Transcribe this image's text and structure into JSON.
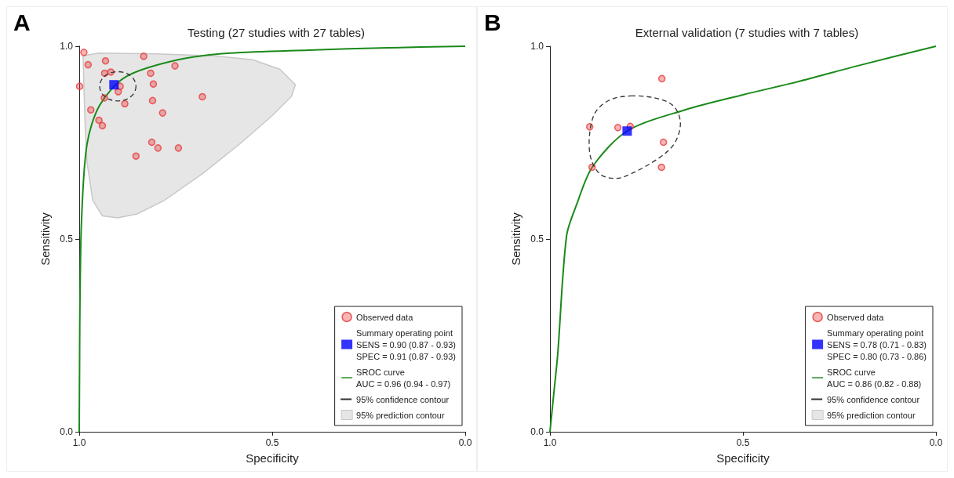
{
  "chart_data": [
    {
      "type": "scatter",
      "title": "Testing (27 studies with 27 tables)",
      "xlabel": "Specificity",
      "ylabel": "Sensitivity",
      "annotations": [
        "A",
        "95% confidence contour"
      ],
      "xlim": [
        1,
        0
      ],
      "ylim": [
        0,
        1
      ],
      "xticks": [
        {
          "value": 1,
          "label": "1.0"
        },
        {
          "value": 0.5,
          "label": "0.5"
        },
        {
          "value": 0,
          "label": "0.0"
        }
      ],
      "yticks": [
        {
          "value": 0,
          "label": "0.0"
        },
        {
          "value": 0.5,
          "label": "0.5"
        },
        {
          "value": 1,
          "label": "1.0"
        }
      ],
      "grid": false,
      "legend": "bottom right",
      "series": [
        {
          "name": "Observed data",
          "type": "scatter",
          "marker": "circle",
          "color": "#e8393a",
          "x": [
            0.988,
            0.833,
            0.977,
            0.932,
            0.752,
            0.934,
            0.918,
            0.815,
            0.999,
            0.894,
            0.808,
            0.899,
            0.935,
            0.81,
            0.681,
            0.882,
            0.97,
            0.784,
            0.949,
            0.94,
            0.812,
            0.796,
            0.743,
            0.853
          ],
          "values": [
            0.984,
            0.974,
            0.952,
            0.962,
            0.949,
            0.93,
            0.933,
            0.93,
            0.896,
            0.896,
            0.902,
            0.882,
            0.866,
            0.859,
            0.869,
            0.851,
            0.835,
            0.827,
            0.808,
            0.794,
            0.751,
            0.736,
            0.736,
            0.715
          ]
        },
        {
          "name": "Summary operating point\nSENS = 0.90 (0.87 - 0.93)\nSPEC = 0.91 (0.87 - 0.93)",
          "type": "scatter",
          "marker": "square",
          "color": "#0000ff",
          "x": [
            0.91
          ],
          "values": [
            0.9
          ]
        },
        {
          "name": "SROC curve\nAUC = 0.96 (0.94 - 0.97)",
          "type": "line",
          "marker": "none",
          "line_style": "solid",
          "color": "#1a8a1a",
          "x": [
            1.0,
            0.999,
            0.998,
            0.994,
            0.98,
            0.947,
            0.879,
            0.744,
            0.609,
            0.406,
            0.2,
            0.0
          ],
          "values": [
            0.0,
            0.2,
            0.35,
            0.549,
            0.745,
            0.847,
            0.921,
            0.965,
            0.982,
            0.99,
            0.996,
            1.0
          ]
        },
        {
          "name": "95% prediction contour",
          "type": "area",
          "color": "#e6e6e6",
          "x": [
            0.99,
            0.95,
            0.8,
            0.65,
            0.55,
            0.48,
            0.44,
            0.45,
            0.5,
            0.58,
            0.68,
            0.78,
            0.85,
            0.9,
            0.94,
            0.965,
            0.98,
            0.985,
            0.988,
            0.99
          ],
          "values": [
            0.975,
            0.982,
            0.98,
            0.975,
            0.965,
            0.94,
            0.9,
            0.87,
            0.82,
            0.75,
            0.67,
            0.6,
            0.565,
            0.555,
            0.56,
            0.6,
            0.7,
            0.8,
            0.9,
            0.975
          ]
        }
      ]
    },
    {
      "type": "scatter",
      "title": "External validation (7 studies with 7 tables)",
      "xlabel": "Specificity",
      "ylabel": "Sensitivity",
      "annotations": [
        "B",
        "95% confidence contour"
      ],
      "xlim": [
        1,
        0
      ],
      "ylim": [
        0,
        1
      ],
      "xticks": [
        {
          "value": 1,
          "label": "1.0"
        },
        {
          "value": 0.5,
          "label": "0.5"
        },
        {
          "value": 0,
          "label": "0.0"
        }
      ],
      "yticks": [
        {
          "value": 0,
          "label": "0.0"
        },
        {
          "value": 0.5,
          "label": "0.5"
        },
        {
          "value": 1,
          "label": "1.0"
        }
      ],
      "grid": false,
      "legend": "bottom right",
      "series": [
        {
          "name": "Observed data",
          "type": "scatter",
          "marker": "circle",
          "color": "#e8393a",
          "x": [
            0.71,
            0.897,
            0.824,
            0.792,
            0.706,
            0.891,
            0.711
          ],
          "values": [
            0.916,
            0.791,
            0.789,
            0.792,
            0.751,
            0.686,
            0.686
          ]
        },
        {
          "name": "Summary operating point\nSENS = 0.78 (0.71 - 0.83)\nSPEC = 0.80 (0.73 - 0.86)",
          "type": "scatter",
          "marker": "square",
          "color": "#0000ff",
          "x": [
            0.8
          ],
          "values": [
            0.78
          ]
        },
        {
          "name": "SROC curve\nAUC = 0.86 (0.82 - 0.88)",
          "type": "line",
          "marker": "none",
          "line_style": "solid",
          "color": "#1a8a1a",
          "x": [
            1.0,
            0.99,
            0.98,
            0.957,
            0.931,
            0.89,
            0.8,
            0.65,
            0.5,
            0.35,
            0.196,
            0.0
          ],
          "values": [
            0.0,
            0.1,
            0.2,
            0.508,
            0.589,
            0.687,
            0.78,
            0.835,
            0.874,
            0.91,
            0.951,
            1.0
          ]
        },
        {
          "name": "95% prediction contour",
          "type": "area",
          "color": "#e6e6e6"
        }
      ]
    }
  ]
}
